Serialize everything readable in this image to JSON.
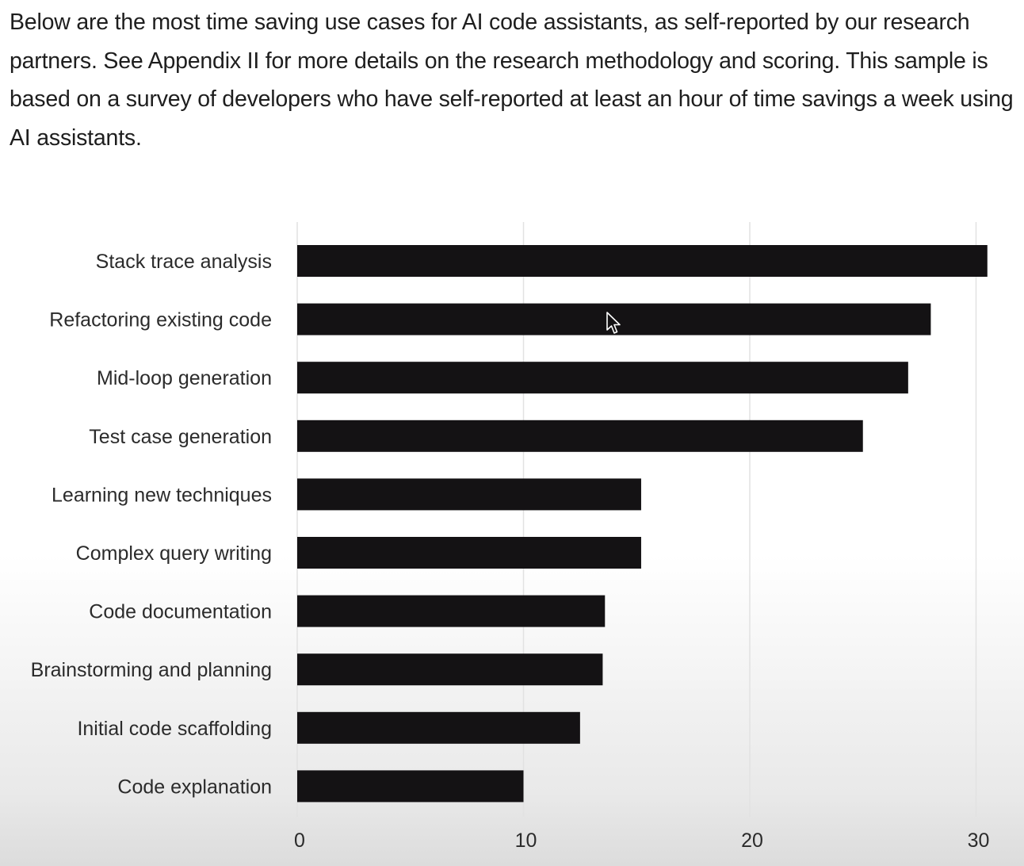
{
  "intro_text": "Below are the most time saving use cases for AI code assistants, as self-reported by our research partners. See Appendix II for more details on the research methodology and scoring. This sample is based on a survey of developers who have self-reported at least an hour of time savings a week using AI assistants.",
  "colors": {
    "bar": "#141214",
    "grid": "#e2e2e2",
    "text": "#1e1e1e"
  },
  "chart_data": {
    "type": "bar",
    "orientation": "horizontal",
    "title": "",
    "xlabel": "",
    "ylabel": "",
    "xlim": [
      0,
      31.5
    ],
    "xticks": [
      0,
      10,
      20,
      30
    ],
    "grid": true,
    "legend": "none",
    "categories": [
      "Stack trace analysis",
      "Refactoring existing code",
      "Mid-loop generation",
      "Test case generation",
      "Learning new techniques",
      "Complex query writing",
      "Code documentation",
      "Brainstorming and planning",
      "Initial code scaffolding",
      "Code explanation"
    ],
    "values": [
      30.5,
      28,
      27,
      25,
      15.2,
      15.2,
      13.6,
      13.5,
      12.5,
      10
    ]
  }
}
